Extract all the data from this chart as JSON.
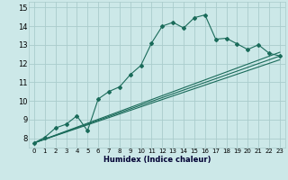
{
  "xlabel": "Humidex (Indice chaleur)",
  "bg_color": "#cce8e8",
  "grid_color": "#aacccc",
  "line_color": "#1a6b5a",
  "xlim": [
    -0.5,
    23.5
  ],
  "ylim": [
    7.5,
    15.3
  ],
  "xticks": [
    0,
    1,
    2,
    3,
    4,
    5,
    6,
    7,
    8,
    9,
    10,
    11,
    12,
    13,
    14,
    15,
    16,
    17,
    18,
    19,
    20,
    21,
    22,
    23
  ],
  "yticks": [
    8,
    9,
    10,
    11,
    12,
    13,
    14,
    15
  ],
  "line1_x": [
    0,
    1,
    2,
    3,
    4,
    5,
    6,
    7,
    8,
    9,
    10,
    11,
    12,
    13,
    14,
    15,
    16,
    17,
    18,
    19,
    20,
    21,
    22,
    23
  ],
  "line1_y": [
    7.75,
    8.05,
    8.55,
    8.75,
    9.2,
    8.4,
    10.1,
    10.5,
    10.75,
    11.4,
    11.9,
    13.1,
    14.0,
    14.2,
    13.9,
    14.45,
    14.6,
    13.3,
    13.35,
    13.05,
    12.75,
    13.0,
    12.55,
    12.4
  ],
  "line2_x": [
    0,
    23
  ],
  "line2_y": [
    7.75,
    12.4
  ],
  "line3_x": [
    0,
    23
  ],
  "line3_y": [
    7.75,
    12.4
  ],
  "line4_x": [
    0,
    23
  ],
  "line4_y": [
    7.75,
    12.4
  ],
  "line2_end_y": 12.4,
  "straight_lines": [
    {
      "x": [
        0,
        23
      ],
      "y": [
        7.75,
        12.2
      ]
    },
    {
      "x": [
        0,
        23
      ],
      "y": [
        7.75,
        12.4
      ]
    },
    {
      "x": [
        0,
        23
      ],
      "y": [
        7.75,
        12.6
      ]
    }
  ]
}
